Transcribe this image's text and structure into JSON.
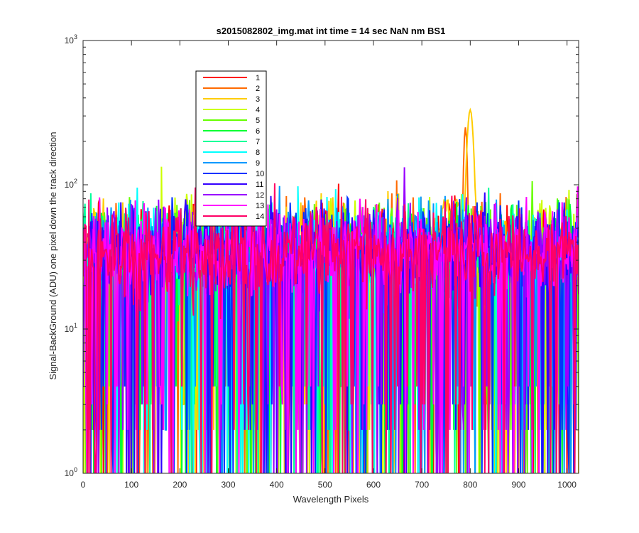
{
  "chart_data": {
    "type": "line",
    "title": "s2015082802_img.mat int time = 14 sec  NaN nm BS1",
    "xlabel": "Wavelength Pixels",
    "ylabel": "Signal-BackGround (ADU) one pixel down the track direction",
    "xlim": [
      0,
      1024
    ],
    "ylim": [
      1,
      1000
    ],
    "yscale": "log",
    "x_ticks": [
      "0",
      "100",
      "200",
      "300",
      "400",
      "500",
      "600",
      "700",
      "800",
      "900",
      "1000"
    ],
    "y_ticks": [
      {
        "base": "10",
        "exp": "0"
      },
      {
        "base": "10",
        "exp": "1"
      },
      {
        "base": "10",
        "exp": "2"
      },
      {
        "base": "10",
        "exp": "3"
      }
    ],
    "grid": false,
    "legend_position": "upper-left",
    "noise_level_typical": 35,
    "noise_level_max": 85,
    "peak": {
      "x": 800,
      "y": 330,
      "series": "3"
    },
    "secondary_peak": {
      "x": 790,
      "y": 250,
      "series": "2"
    },
    "series": [
      {
        "name": "1",
        "color": "#ff0000"
      },
      {
        "name": "2",
        "color": "#ff6a00"
      },
      {
        "name": "3",
        "color": "#ffcc00"
      },
      {
        "name": "4",
        "color": "#ccff00"
      },
      {
        "name": "5",
        "color": "#66ff00"
      },
      {
        "name": "6",
        "color": "#00ff33"
      },
      {
        "name": "7",
        "color": "#00ff99"
      },
      {
        "name": "8",
        "color": "#00ffff"
      },
      {
        "name": "9",
        "color": "#0099ff"
      },
      {
        "name": "10",
        "color": "#0033ff"
      },
      {
        "name": "11",
        "color": "#3300ff"
      },
      {
        "name": "12",
        "color": "#9900ff"
      },
      {
        "name": "13",
        "color": "#ff00ff"
      },
      {
        "name": "14",
        "color": "#ff0066"
      }
    ]
  }
}
